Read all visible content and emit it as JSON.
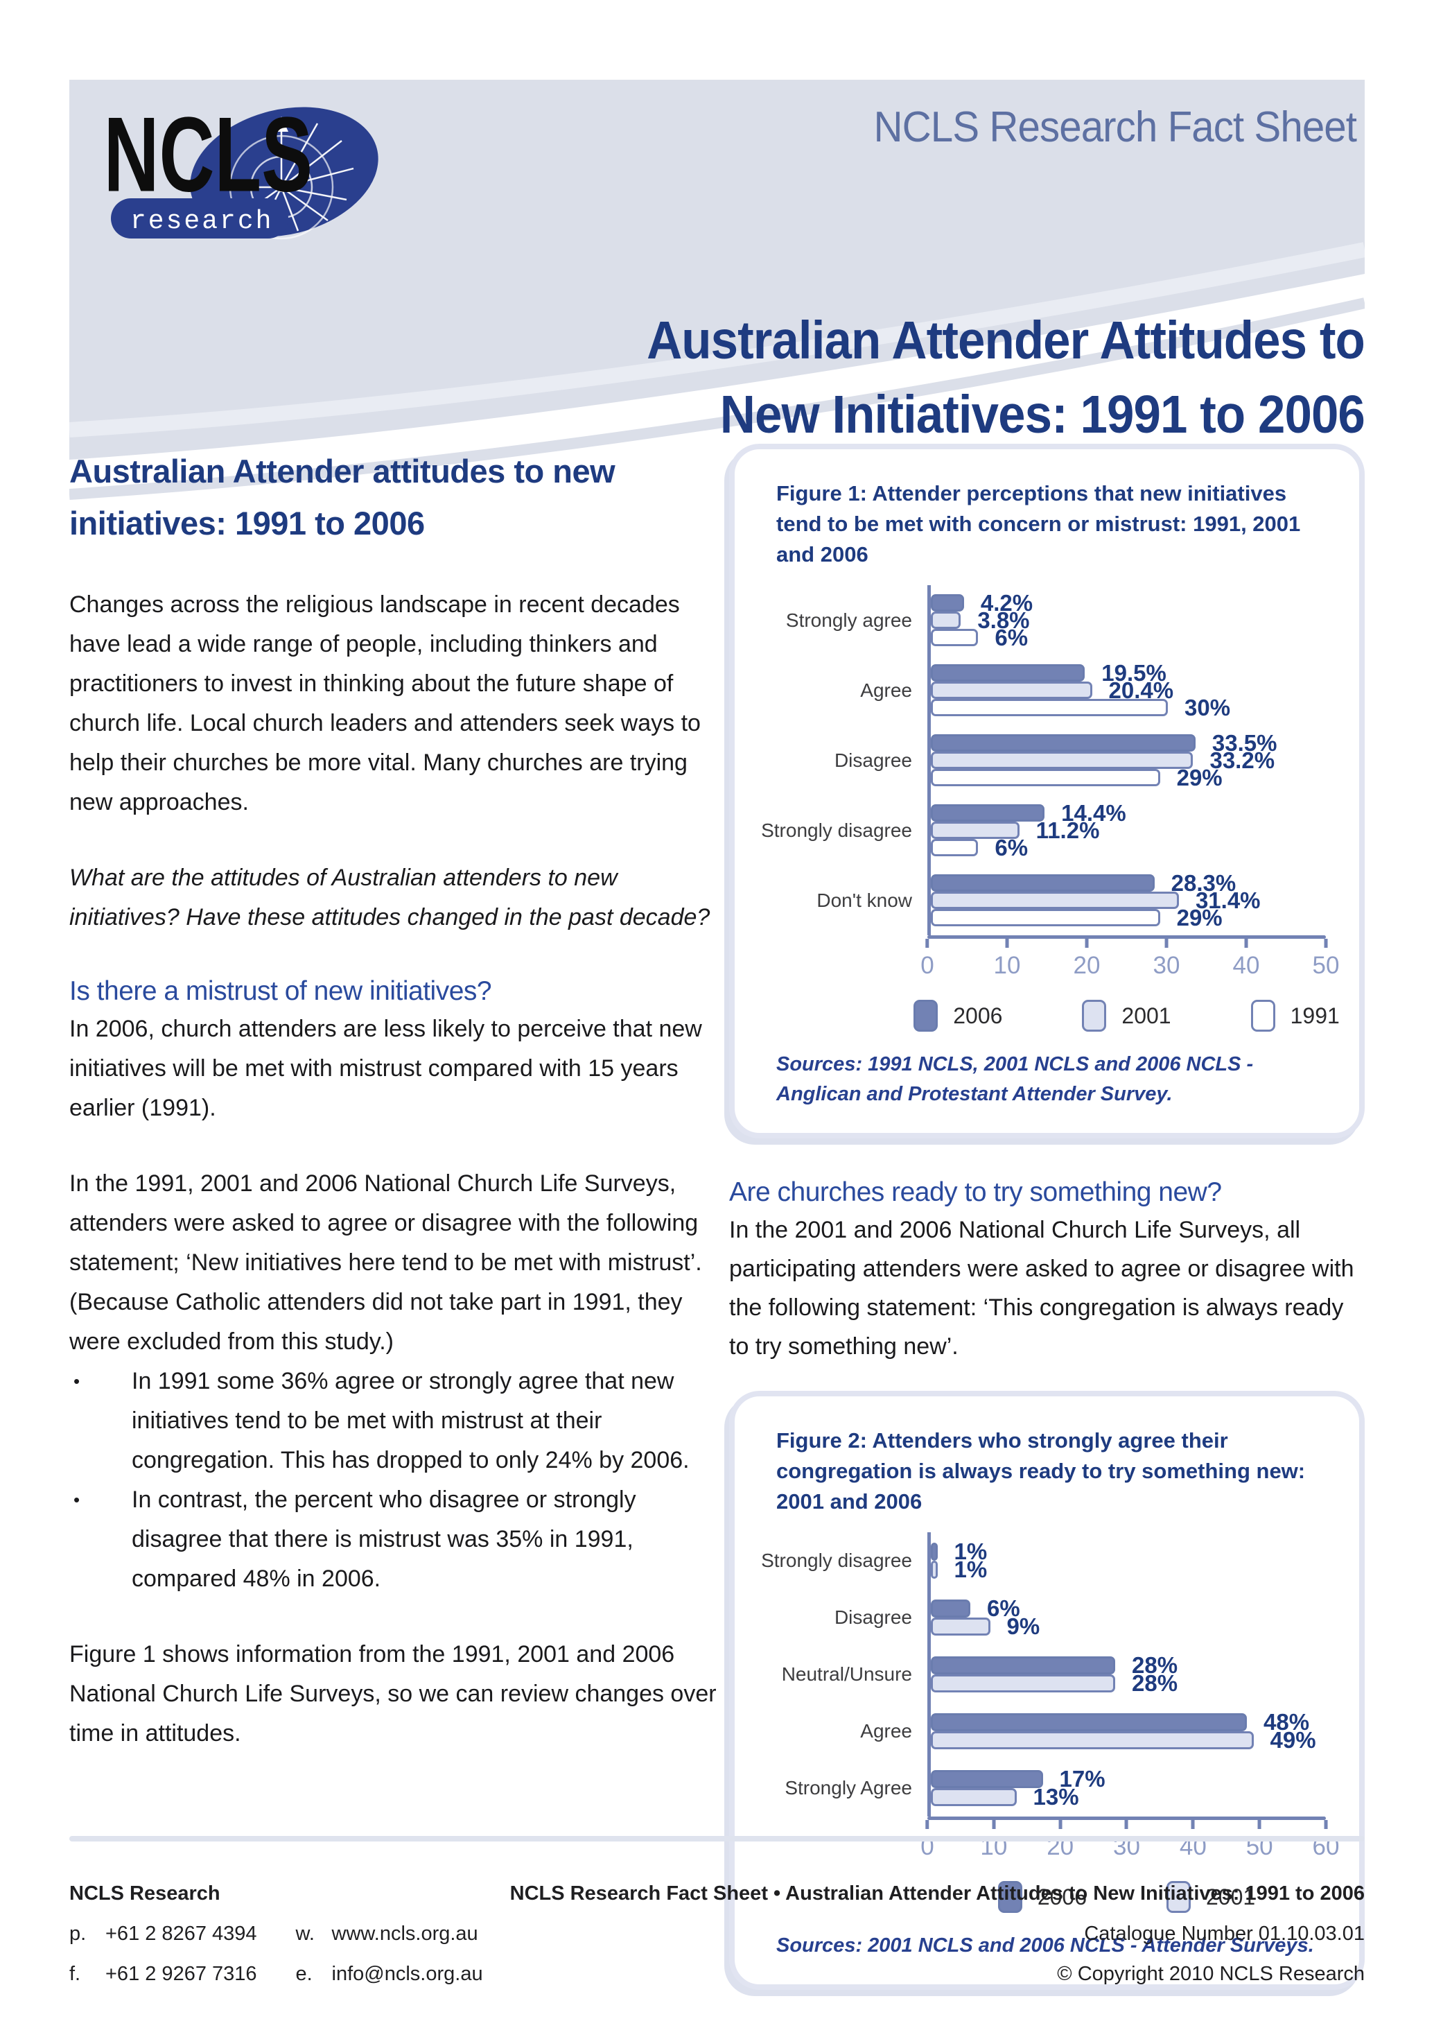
{
  "colors": {
    "navy": "#1e3b80",
    "heading_blue": "#2a4a9d",
    "banner_bg": "#dbdfe9",
    "banner_text": "#5d70a2",
    "axis": "#7282b4",
    "tick_label": "#8e9cc5",
    "bar_2006": "#7282b4",
    "bar_2001": "#dde2f1",
    "bar_1991": "#ffffff",
    "figure_border": "#e1e4f1",
    "logo_navy": "#2a3f8e"
  },
  "header": {
    "banner_title": "NCLS Research Fact Sheet",
    "logo_text": "NCLS",
    "logo_sub": "research",
    "doc_title_line1": "Australian Attender Attitudes to",
    "doc_title_line2": "New Initiatives: 1991 to 2006"
  },
  "left_column": {
    "heading": "Australian Attender attitudes to new initiatives: 1991 to 2006",
    "para1": "Changes across the religious landscape in recent decades have lead a wide range of people, including thinkers and practitioners to invest in thinking about the future shape of church life. Local church leaders and attenders seek ways to help their churches be more vital. Many churches are trying new approaches.",
    "question_para": "What are the attitudes of Australian attenders to new initiatives? Have these attitudes changed in the past decade?",
    "section_heading": "Is there a mistrust of new initiatives?",
    "para2": "In 2006, church attenders are less likely to perceive that new initiatives will be met with mistrust compared with 15 years earlier (1991).",
    "para3": "In the 1991, 2001 and 2006 National Church Life Surveys, attenders were asked to agree or disagree with the following statement; ‘New initiatives here tend to be met with mistrust’. (Because Catholic attenders did not take part in 1991, they were excluded from this study.)",
    "bullet_char": "•",
    "bullets": [
      "In 1991 some 36% agree or strongly agree that new initiatives tend to be met with mistrust at their congregation.  This has dropped to only 24% by 2006.",
      "In contrast, the percent who disagree or strongly disagree that there is mistrust was 35% in 1991, compared 48% in 2006."
    ],
    "para4": "Figure 1 shows information from the 1991, 2001 and 2006 National Church Life Surveys, so we can review changes over time in attitudes."
  },
  "right_column": {
    "section_heading": "Are churches ready to try something new?",
    "para": "In the 2001 and 2006 National Church Life Surveys, all participating attenders were asked to agree or disagree with the following statement: ‘This congregation is always ready to try something new’."
  },
  "figures": [
    {
      "title": "Figure 1: Attender perceptions that new initiatives tend to be met with concern or mistrust: 1991, 2001 and 2006",
      "sources": "Sources: 1991 NCLS, 2001 NCLS and 2006 NCLS - Anglican and Protestant Attender Survey.",
      "chart_data": {
        "type": "bar",
        "orientation": "horizontal",
        "categories": [
          "Strongly agree",
          "Agree",
          "Disagree",
          "Strongly disagree",
          "Don't know"
        ],
        "series": [
          {
            "name": "2006",
            "values": [
              4.2,
              19.5,
              33.5,
              14.4,
              28.3
            ],
            "labels": [
              "4.2%",
              "19.5%",
              "33.5%",
              "14.4%",
              "28.3%"
            ],
            "fill": "#7282b4",
            "stroke": "#6a7cae"
          },
          {
            "name": "2001",
            "values": [
              3.8,
              20.4,
              33.2,
              11.2,
              31.4
            ],
            "labels": [
              "3.8%",
              "20.4%",
              "33.2%",
              "11.2%",
              "31.4%"
            ],
            "fill": "#dde2f1",
            "stroke": "#7282b4"
          },
          {
            "name": "1991",
            "values": [
              6,
              30,
              29,
              6,
              29
            ],
            "labels": [
              "6%",
              "30%",
              "29%",
              "6%",
              "29%"
            ],
            "fill": "#ffffff",
            "stroke": "#7282b4"
          }
        ],
        "xlim": [
          0,
          50
        ],
        "ticks": [
          0,
          10,
          20,
          30,
          40,
          50
        ],
        "grid": false,
        "legend_position": "bottom"
      }
    },
    {
      "title": "Figure 2: Attenders who strongly agree their congregation is always ready to try something new: 2001 and 2006",
      "sources": "Sources: 2001 NCLS and 2006 NCLS - Attender Surveys.",
      "chart_data": {
        "type": "bar",
        "orientation": "horizontal",
        "categories": [
          "Strongly disagree",
          "Disagree",
          "Neutral/Unsure",
          "Agree",
          "Strongly Agree"
        ],
        "series": [
          {
            "name": "2006",
            "values": [
              1,
              6,
              28,
              48,
              17
            ],
            "labels": [
              "1%",
              "6%",
              "28%",
              "48%",
              "17%"
            ],
            "fill": "#7282b4",
            "stroke": "#6a7cae"
          },
          {
            "name": "2001",
            "values": [
              1,
              9,
              28,
              49,
              13
            ],
            "labels": [
              "1%",
              "9%",
              "28%",
              "49%",
              "13%"
            ],
            "fill": "#dde2f1",
            "stroke": "#7282b4"
          }
        ],
        "xlim": [
          0,
          60
        ],
        "ticks": [
          0,
          10,
          20,
          30,
          40,
          50,
          60
        ],
        "grid": false,
        "legend_position": "bottom"
      }
    }
  ],
  "footer": {
    "org": "NCLS Research",
    "phone_label": "p.",
    "phone": "+61 2 8267 4394",
    "fax_label": "f.",
    "fax": "+61 2 9267 7316",
    "web_label": "w.",
    "web": "www.ncls.org.au",
    "email_label": "e.",
    "email": "info@ncls.org.au",
    "right_line1": "NCLS Research Fact Sheet • Australian Attender Attitudes to New Initiatives: 1991 to 2006",
    "right_line2": "Catalogue Number 01.10.03.01",
    "right_line3": "© Copyright 2010 NCLS Research"
  }
}
